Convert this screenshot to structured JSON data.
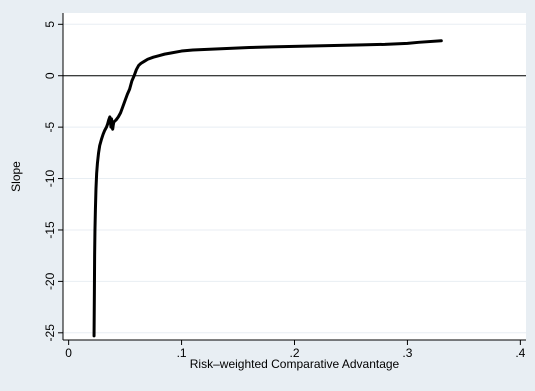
{
  "chart_data": {
    "type": "line",
    "title": "",
    "xlabel": "Risk–weighted Comparative Advantage",
    "ylabel": "Slope",
    "xlim": [
      -0.005,
      0.405
    ],
    "ylim": [
      -25.7,
      6.1
    ],
    "xticks": [
      0,
      0.1,
      0.2,
      0.3,
      0.4
    ],
    "xtick_labels": [
      "0",
      ".1",
      ".2",
      ".3",
      ".4"
    ],
    "yticks": [
      5,
      0,
      -5,
      -10,
      -15,
      -20,
      -25
    ],
    "ytick_labels": [
      "5",
      "0",
      "-5",
      "-10",
      "-15",
      "-20",
      "-25"
    ],
    "hline": 0,
    "grid": true,
    "legend": "none",
    "colors": {
      "background": "#e8eef3",
      "plot_area": "#ffffff",
      "line": "#000000",
      "grid": "#e8eef3"
    },
    "series": [
      {
        "x": [
          0.0225,
          0.0228,
          0.023,
          0.0233,
          0.0237,
          0.0242,
          0.0248,
          0.0255,
          0.0265,
          0.0275,
          0.029,
          0.0305,
          0.032,
          0.0335,
          0.0345,
          0.0355,
          0.0365,
          0.037,
          0.0375,
          0.038,
          0.0385,
          0.039,
          0.0395,
          0.04,
          0.042,
          0.044,
          0.046,
          0.048,
          0.05,
          0.052,
          0.054,
          0.056,
          0.058,
          0.06,
          0.062,
          0.064,
          0.067,
          0.07,
          0.075,
          0.08,
          0.085,
          0.09,
          0.1,
          0.11,
          0.12,
          0.14,
          0.16,
          0.18,
          0.2,
          0.22,
          0.24,
          0.26,
          0.28,
          0.3,
          0.31,
          0.33
        ],
        "values": [
          -25.3,
          -21.0,
          -17.5,
          -15.0,
          -13.0,
          -11.0,
          -9.5,
          -8.5,
          -7.5,
          -6.8,
          -6.2,
          -5.7,
          -5.3,
          -5.0,
          -4.7,
          -4.3,
          -4.0,
          -4.5,
          -5.0,
          -4.2,
          -5.0,
          -5.2,
          -4.8,
          -4.5,
          -4.3,
          -4.0,
          -3.6,
          -3.0,
          -2.4,
          -1.8,
          -1.3,
          -0.5,
          0.0,
          0.6,
          1.0,
          1.2,
          1.4,
          1.6,
          1.8,
          1.95,
          2.1,
          2.2,
          2.4,
          2.5,
          2.55,
          2.65,
          2.75,
          2.8,
          2.85,
          2.9,
          2.95,
          3.0,
          3.05,
          3.15,
          3.25,
          3.4
        ]
      }
    ]
  }
}
